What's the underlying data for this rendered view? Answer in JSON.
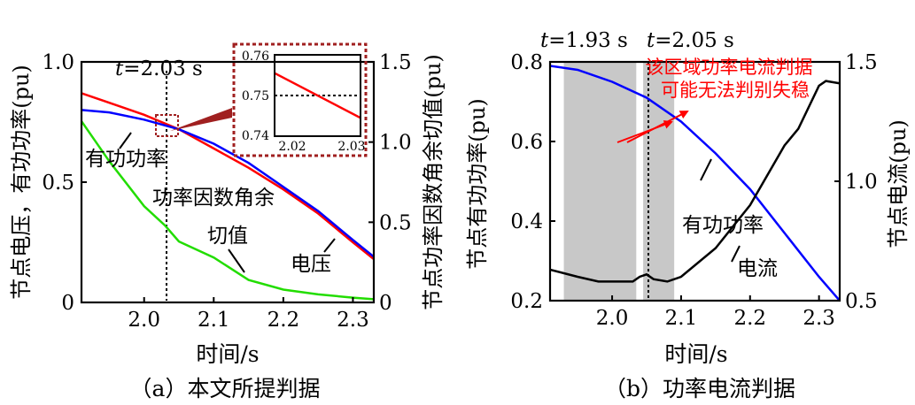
{
  "chart_data": [
    {
      "panel": "a",
      "type": "line",
      "caption": "（a）本文所提判据",
      "xlabel": "时间/s",
      "ylabel_left": "节点电压，有功功率(pu)",
      "ylabel_right": "节点功率因数角余切值(pu)",
      "xlim": [
        1.91,
        2.33
      ],
      "ylim_left": [
        0,
        1.0
      ],
      "ylim_right": [
        0,
        1.5
      ],
      "xticks": [
        "2.0",
        "2.1",
        "2.2",
        "2.3"
      ],
      "yticks_left": [
        "0",
        "0.5",
        "1.0"
      ],
      "yticks_right": [
        "0",
        "0.5",
        "1.0",
        "1.5"
      ],
      "vline": {
        "x": 2.03,
        "label_var": "t",
        "label_rest": "=2.03 s"
      },
      "series": [
        {
          "name": "电压",
          "color": "#ff0000",
          "axis": "left",
          "x": [
            1.91,
            1.95,
            2.0,
            2.05,
            2.1,
            2.15,
            2.2,
            2.25,
            2.3,
            2.33
          ],
          "y": [
            0.87,
            0.83,
            0.78,
            0.72,
            0.64,
            0.56,
            0.47,
            0.37,
            0.25,
            0.18
          ]
        },
        {
          "name": "有功功率",
          "color": "#0000ff",
          "axis": "left",
          "x": [
            1.91,
            1.95,
            2.0,
            2.05,
            2.1,
            2.15,
            2.2,
            2.25,
            2.3,
            2.33
          ],
          "y": [
            0.8,
            0.79,
            0.76,
            0.72,
            0.66,
            0.58,
            0.48,
            0.38,
            0.26,
            0.19
          ]
        },
        {
          "name": "功率因数角余切值",
          "color": "#22dd00",
          "axis": "right",
          "x": [
            1.91,
            1.95,
            2.0,
            2.03,
            2.05,
            2.1,
            2.15,
            2.2,
            2.25,
            2.3,
            2.33
          ],
          "y": [
            1.13,
            0.88,
            0.6,
            0.48,
            0.38,
            0.28,
            0.14,
            0.08,
            0.05,
            0.03,
            0.02
          ]
        }
      ],
      "annotations": [
        "有功功率",
        "功率因数角余",
        "切值",
        "电压"
      ],
      "inset": {
        "xlim": [
          2.015,
          2.035
        ],
        "ylim": [
          0.74,
          0.76
        ],
        "xticks": [
          "2.02",
          "2.03"
        ],
        "yticks": [
          "0.74",
          "0.75",
          "0.76"
        ],
        "hline": 0.75,
        "line": {
          "x": [
            2.015,
            2.035
          ],
          "y": [
            0.7555,
            0.7445
          ],
          "color": "#ff0000"
        }
      }
    },
    {
      "panel": "b",
      "type": "line",
      "caption": "（b）功率电流判据",
      "xlabel": "时间/s",
      "ylabel_left": "节点有功功率(pu)",
      "ylabel_right": "节点电流(pu)",
      "xlim": [
        1.91,
        2.33
      ],
      "ylim_left": [
        0.2,
        0.8
      ],
      "ylim_right": [
        0.5,
        1.5
      ],
      "xticks": [
        "2.0",
        "2.1",
        "2.2",
        "2.3"
      ],
      "yticks_left": [
        "0.2",
        "0.4",
        "0.6",
        "0.8"
      ],
      "yticks_right": [
        "0.5",
        "1.0",
        "1.5"
      ],
      "shaded_regions": [
        [
          1.93,
          2.035
        ],
        [
          2.045,
          2.09
        ]
      ],
      "vline": {
        "x": 2.05
      },
      "top_labels": [
        {
          "var": "t",
          "rest": "=1.93 s"
        },
        {
          "var": "t",
          "rest": "=2.05 s"
        }
      ],
      "series": [
        {
          "name": "有功功率",
          "color": "#0000ff",
          "axis": "left",
          "x": [
            1.91,
            1.95,
            2.0,
            2.05,
            2.1,
            2.15,
            2.2,
            2.25,
            2.3,
            2.33
          ],
          "y": [
            0.79,
            0.78,
            0.75,
            0.71,
            0.65,
            0.57,
            0.48,
            0.37,
            0.26,
            0.2
          ]
        },
        {
          "name": "电流",
          "color": "#000000",
          "axis": "right",
          "x": [
            1.91,
            1.95,
            1.98,
            2.0,
            2.03,
            2.04,
            2.05,
            2.06,
            2.08,
            2.1,
            2.15,
            2.2,
            2.25,
            2.27,
            2.3,
            2.31,
            2.33
          ],
          "y": [
            0.63,
            0.6,
            0.58,
            0.58,
            0.58,
            0.6,
            0.61,
            0.59,
            0.58,
            0.6,
            0.72,
            0.9,
            1.15,
            1.22,
            1.4,
            1.42,
            1.41
          ]
        }
      ],
      "annotations": [
        "有功功率",
        "电流"
      ],
      "note": [
        "该区域功率电流判据",
        "可能无法判别失稳"
      ]
    }
  ]
}
